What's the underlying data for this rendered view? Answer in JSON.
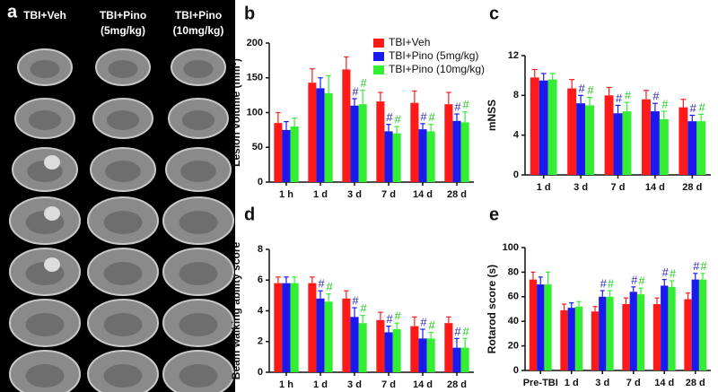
{
  "panel_a": {
    "label": "a",
    "columns": [
      [
        "TBI+Veh"
      ],
      [
        "TBI+Pino",
        "(5mg/kg)"
      ],
      [
        "TBI+Pino",
        "(10mg/kg)"
      ]
    ]
  },
  "chart_data": [
    {
      "type": "bar",
      "label": "b",
      "ylabel": "Lesion volume (mm³)",
      "categories": [
        "1 h",
        "1 d",
        "3 d",
        "7 d",
        "14 d",
        "28 d"
      ],
      "ylim": [
        0,
        200
      ],
      "yticks": [
        0,
        50,
        100,
        150,
        200
      ],
      "legend": "top-right",
      "series": [
        {
          "name": "TBI+Veh",
          "color": "#ff1a1a",
          "values": [
            85,
            143,
            162,
            116,
            114,
            112
          ],
          "errors": [
            15,
            20,
            18,
            13,
            17,
            17
          ]
        },
        {
          "name": "TBI+Pino (5mg/kg)",
          "color": "#1a1aee",
          "values": [
            75,
            135,
            110,
            73,
            76,
            88
          ],
          "errors": [
            12,
            15,
            10,
            10,
            8,
            10
          ],
          "annotation_color": "#2a2ab8",
          "annotations": [
            null,
            null,
            "#",
            "#",
            "#",
            "#"
          ]
        },
        {
          "name": "TBI+Pino (10mg/kg)",
          "color": "#33ee33",
          "values": [
            80,
            128,
            112,
            70,
            73,
            86
          ],
          "errors": [
            12,
            25,
            20,
            10,
            10,
            15
          ],
          "annotation_color": "#22cc22",
          "annotations": [
            null,
            null,
            "#",
            "#",
            "#",
            "#"
          ]
        }
      ]
    },
    {
      "type": "bar",
      "label": "c",
      "ylabel": "mNSS",
      "categories": [
        "1 d",
        "3 d",
        "7 d",
        "14 d",
        "28 d"
      ],
      "ylim": [
        0,
        12
      ],
      "yticks": [
        0,
        4,
        8,
        12
      ],
      "series": [
        {
          "color": "#ff1a1a",
          "values": [
            9.8,
            8.7,
            8.0,
            7.6,
            6.8
          ],
          "errors": [
            0.8,
            0.9,
            0.8,
            0.9,
            0.8
          ]
        },
        {
          "color": "#1a1aee",
          "values": [
            9.5,
            7.2,
            6.2,
            6.4,
            5.4
          ],
          "errors": [
            0.7,
            0.8,
            0.8,
            0.8,
            0.6
          ],
          "annotation_color": "#2a2ab8",
          "annotations": [
            null,
            "#",
            "#",
            "#",
            "#"
          ]
        },
        {
          "color": "#33ee33",
          "values": [
            9.6,
            7.0,
            6.4,
            5.6,
            5.4
          ],
          "errors": [
            0.6,
            0.8,
            0.9,
            0.8,
            0.7
          ],
          "annotation_color": "#22cc22",
          "annotations": [
            null,
            "#",
            "#",
            "#",
            "#"
          ]
        }
      ]
    },
    {
      "type": "bar",
      "label": "d",
      "ylabel": "Beam walking ability score",
      "categories": [
        "1 h",
        "1 d",
        "3 d",
        "7 d",
        "14 d",
        "28 d"
      ],
      "ylim": [
        0,
        8
      ],
      "yticks": [
        0,
        2,
        4,
        6,
        8
      ],
      "series": [
        {
          "color": "#ff1a1a",
          "values": [
            5.8,
            5.8,
            4.8,
            3.4,
            3.0,
            3.2
          ],
          "errors": [
            0.4,
            0.4,
            0.5,
            0.5,
            0.6,
            0.4
          ]
        },
        {
          "color": "#1a1aee",
          "values": [
            5.8,
            4.8,
            3.6,
            2.6,
            2.2,
            1.6
          ],
          "errors": [
            0.4,
            0.5,
            0.6,
            0.4,
            0.6,
            0.6
          ],
          "annotation_color": "#2a2ab8",
          "annotations": [
            null,
            "#",
            "#",
            "#",
            "#",
            "#"
          ]
        },
        {
          "color": "#33ee33",
          "values": [
            5.8,
            4.6,
            3.2,
            2.8,
            2.2,
            1.6
          ],
          "errors": [
            0.4,
            0.5,
            0.5,
            0.4,
            0.4,
            0.6
          ],
          "annotation_color": "#22cc22",
          "annotations": [
            null,
            "#",
            "#",
            "#",
            "#",
            "#"
          ]
        }
      ]
    },
    {
      "type": "bar",
      "label": "e",
      "ylabel": "Rotarod score (s)",
      "categories": [
        "Pre-TBI",
        "1 d",
        "3 d",
        "7 d",
        "14 d",
        "28 d"
      ],
      "ylim": [
        0,
        100
      ],
      "yticks": [
        0,
        20,
        40,
        60,
        80,
        100
      ],
      "series": [
        {
          "color": "#ff1a1a",
          "values": [
            74,
            49,
            48,
            54,
            54,
            58
          ],
          "errors": [
            6,
            5,
            4,
            5,
            5,
            5
          ]
        },
        {
          "color": "#1a1aee",
          "values": [
            70,
            51,
            60,
            64,
            69,
            74
          ],
          "errors": [
            6,
            4,
            5,
            4,
            5,
            5
          ],
          "annotation_color": "#2a2ab8",
          "annotations": [
            null,
            null,
            "#",
            "#",
            "#",
            "#"
          ]
        },
        {
          "color": "#33ee33",
          "values": [
            70,
            52,
            60,
            62,
            68,
            74
          ],
          "errors": [
            10,
            4,
            5,
            5,
            5,
            5
          ],
          "annotation_color": "#22cc22",
          "annotations": [
            null,
            null,
            "#",
            "#",
            "#",
            "#"
          ]
        }
      ]
    }
  ]
}
